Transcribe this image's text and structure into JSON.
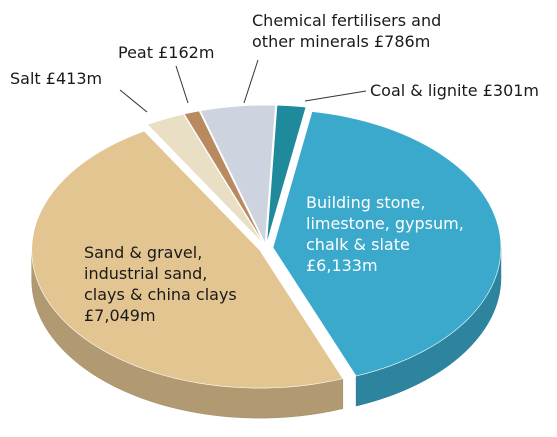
{
  "chart_data": {
    "type": "pie",
    "categories": [
      "Coal & lignite",
      "Building stone, limestone, gypsum, chalk & slate",
      "Sand & gravel, industrial sand, clays & china clays",
      "Salt",
      "Peat",
      "Chemical fertilisers and other minerals"
    ],
    "values": [
      301,
      6133,
      7049,
      413,
      162,
      786
    ],
    "value_labels": [
      "£301m",
      "£6,133m",
      "£7,049m",
      "£413m",
      "£162m",
      "£786m"
    ],
    "colors": [
      "#1e8a9b",
      "#3aa9cc",
      "#e3c592",
      "#e8dfc4",
      "#b98a60",
      "#cdd4df"
    ]
  }
}
